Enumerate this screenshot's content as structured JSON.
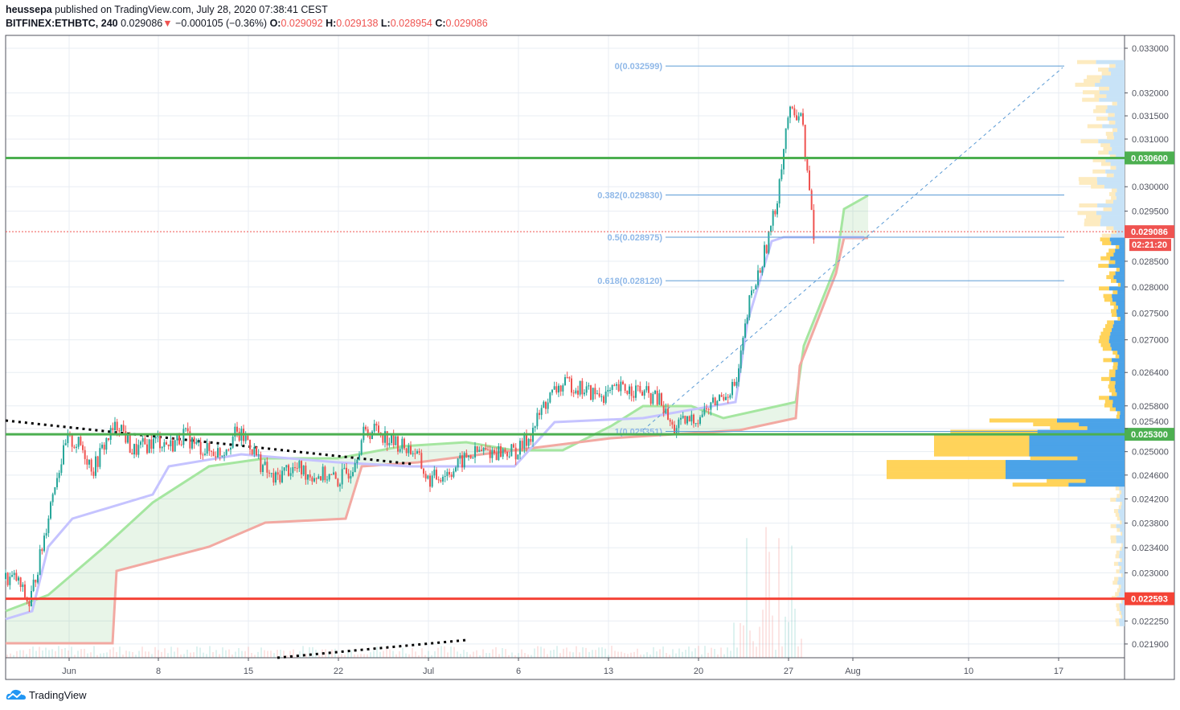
{
  "header": {
    "author": "heussepa",
    "published": "published on TradingView.com, July 28, 2020 07:38:41 CEST",
    "symbol": "BITFINEX:ETHBTC, 240",
    "last": "0.029086",
    "change_icon": "triangle-down",
    "change": "−0.000105 (−0.36%)",
    "o_label": "O:",
    "o": "0.029092",
    "h_label": "H:",
    "h": "0.029138",
    "l_label": "L:",
    "l": "0.028954",
    "c_label": "C:",
    "c": "0.029086"
  },
  "footer": {
    "brand": "TradingView"
  },
  "colors": {
    "up": "#26a69a",
    "down": "#ef5350",
    "support": "#4caf50",
    "resistance_red": "#f44336",
    "fib": "#5b9bd5",
    "baseline": "#b6b3ff"
  },
  "chart_data": {
    "type": "candlestick",
    "scale": "log",
    "ylim": [
      0.0217,
      0.0334
    ],
    "y_ticks": [
      "0.033000",
      "0.032000",
      "0.031500",
      "0.031000",
      "0.030000",
      "0.029500",
      "0.028500",
      "0.028000",
      "0.027500",
      "0.027000",
      "0.026400",
      "0.025800",
      "0.025400",
      "0.025000",
      "0.024600",
      "0.024200",
      "0.023800",
      "0.023400",
      "0.023000",
      "0.022250",
      "0.021900"
    ],
    "x_ticks": [
      "Jun",
      "8",
      "15",
      "22",
      "Jul",
      "6",
      "13",
      "20",
      "27",
      "Aug",
      "10",
      "17"
    ],
    "daily_close": [
      0.0229,
      0.0225,
      0.0234,
      0.0245,
      0.0252,
      0.0251,
      0.0247,
      0.0252,
      0.0255,
      0.025,
      0.0251,
      0.0252,
      0.0251,
      0.0253,
      0.0251,
      0.025,
      0.025,
      0.0253,
      0.0252,
      0.0248,
      0.0245,
      0.0247,
      0.0247,
      0.0246,
      0.0246,
      0.0245,
      0.0247,
      0.0253,
      0.0254,
      0.0252,
      0.0251,
      0.025,
      0.0245,
      0.0246,
      0.0247,
      0.0249,
      0.025,
      0.025,
      0.025,
      0.025,
      0.0253,
      0.0258,
      0.0261,
      0.0262,
      0.0261,
      0.026,
      0.026,
      0.0261,
      0.0261,
      0.026,
      0.0259,
      0.0254,
      0.0255,
      0.0256,
      0.0258,
      0.026,
      0.0262,
      0.0277,
      0.0285,
      0.0295,
      0.0315,
      0.0316,
      0.029
    ],
    "horizontal_levels": [
      {
        "price": 0.0306,
        "label": "0.030600",
        "color": "#4caf50"
      },
      {
        "price": 0.0253,
        "label": "0.025300",
        "color": "#4caf50"
      },
      {
        "price": 0.022593,
        "label": "0.022593",
        "color": "#f44336"
      }
    ],
    "fib_levels": [
      {
        "label": "0(0.032599)",
        "price": 0.032599
      },
      {
        "label": "0.382(0.029830)",
        "price": 0.02983
      },
      {
        "label": "0.5(0.028975)",
        "price": 0.028975
      },
      {
        "label": "0.618(0.028120)",
        "price": 0.02812
      },
      {
        "label": "1(0.025351)",
        "price": 0.025351
      }
    ],
    "last_price": {
      "label": "0.029086",
      "price": 0.029086,
      "countdown": "02:21:20"
    }
  }
}
